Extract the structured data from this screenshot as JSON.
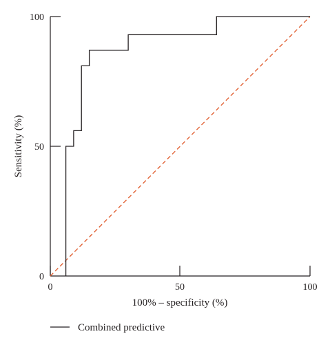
{
  "chart_data": {
    "type": "line",
    "xlabel": "100% – specificity (%)",
    "ylabel": "Sensitivity (%)",
    "xlim": [
      0,
      100
    ],
    "ylim": [
      0,
      100
    ],
    "x_ticks": [
      "0",
      "50",
      "100"
    ],
    "y_ticks": [
      "0",
      "50",
      "100"
    ],
    "legend_position": "bottom-left",
    "series": [
      {
        "name": "Combined predictive",
        "style": "solid",
        "color": "#231f20",
        "x": [
          6,
          6,
          9,
          9,
          12,
          12,
          15,
          15,
          30,
          30,
          64,
          64,
          100
        ],
        "y": [
          0,
          50,
          50,
          56,
          56,
          81,
          81,
          87,
          87,
          93,
          93,
          100,
          100
        ]
      },
      {
        "style": "dashed",
        "color": "#e05a2b",
        "x": [
          0,
          100
        ],
        "y": [
          0,
          100
        ]
      }
    ]
  }
}
